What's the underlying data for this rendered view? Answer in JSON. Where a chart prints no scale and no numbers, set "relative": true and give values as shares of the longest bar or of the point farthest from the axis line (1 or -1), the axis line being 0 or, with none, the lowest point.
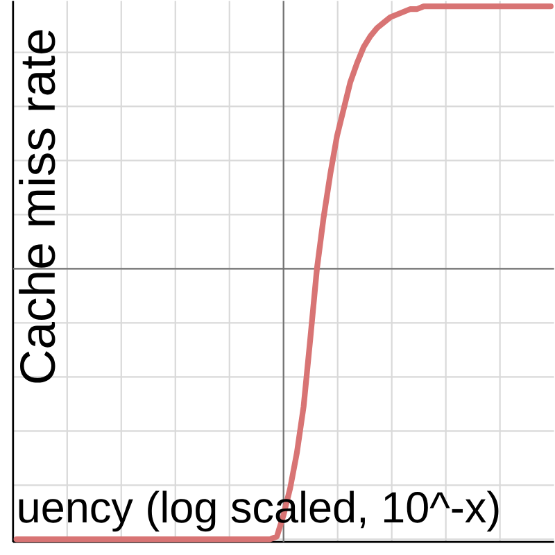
{
  "chart_data": {
    "type": "line",
    "relative": true,
    "xlabel": "uency (log scaled, 10^-x)",
    "ylabel": "Cache miss rate",
    "grid": true,
    "marker": "none",
    "line_style": "solid",
    "categories": [
      null,
      null,
      null,
      null,
      null,
      null,
      null,
      null,
      null,
      null,
      null,
      null,
      null,
      null,
      null,
      null,
      null,
      null,
      null,
      null,
      null,
      null,
      null,
      null,
      null,
      null,
      null,
      null,
      null,
      null,
      null,
      null,
      null,
      null,
      null,
      null,
      null,
      null,
      null,
      null,
      null,
      null,
      null,
      null,
      null,
      null,
      null,
      null,
      null,
      null,
      null,
      null,
      null,
      null,
      null,
      null,
      null,
      null,
      null,
      null,
      null,
      null,
      null,
      null,
      null,
      null,
      null,
      null,
      null,
      null,
      null,
      null,
      null,
      null,
      null,
      null,
      null,
      null,
      null,
      null,
      null
    ],
    "series": [
      {
        "color": "#d87474",
        "values": [
          -1,
          -1,
          -1,
          -1,
          -1,
          -1,
          -1,
          -1,
          -1,
          -1,
          -1,
          -1,
          -1,
          -1,
          -1,
          -1,
          -1,
          -1,
          -1,
          -1,
          -1,
          -1,
          -1,
          -1,
          -1,
          -1,
          -1,
          -1,
          -1,
          -1,
          -1,
          -1,
          -1,
          -1,
          -1,
          -1,
          -1,
          -1,
          -1,
          -0.99,
          -0.91,
          -0.81,
          -0.68,
          -0.51,
          -0.26,
          0,
          0.19,
          0.35,
          0.49,
          0.59,
          0.69,
          0.76,
          0.82,
          0.86,
          0.89,
          0.91,
          0.93,
          0.94,
          0.95,
          0.96,
          0.96,
          0.97,
          0.97,
          0.97,
          0.97,
          0.97,
          0.97,
          0.97,
          0.97,
          0.97,
          0.97,
          0.97,
          0.97,
          0.97,
          0.97,
          0.97,
          0.97,
          0.97,
          0.97,
          0.97,
          0.97
        ]
      }
    ]
  }
}
